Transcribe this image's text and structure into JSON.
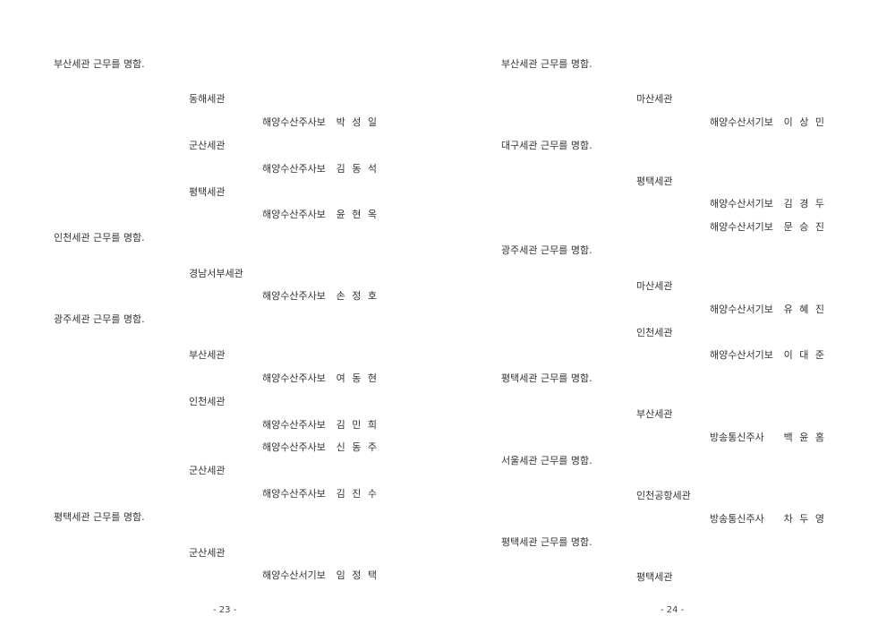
{
  "pages": [
    {
      "page_number": "- 23 -",
      "lines": [
        {
          "type": "heading",
          "text": "부산세관 근무를 명함."
        },
        {
          "type": "office",
          "text": "동해세관"
        },
        {
          "type": "person",
          "title": "해양수산주사보",
          "name": "박 성 일"
        },
        {
          "type": "office",
          "text": "군산세관"
        },
        {
          "type": "person",
          "title": "해양수산주사보",
          "name": "김 동 석"
        },
        {
          "type": "office",
          "text": "평택세관"
        },
        {
          "type": "person",
          "title": "해양수산주사보",
          "name": "윤 현 옥"
        },
        {
          "type": "heading",
          "text": "인천세관 근무를 명함."
        },
        {
          "type": "office",
          "text": "경남서부세관"
        },
        {
          "type": "person",
          "title": "해양수산주사보",
          "name": "손 정 호"
        },
        {
          "type": "heading",
          "text": "광주세관 근무를 명함."
        },
        {
          "type": "office",
          "text": "부산세관"
        },
        {
          "type": "person",
          "title": "해양수산주사보",
          "name": "여 동 현"
        },
        {
          "type": "office",
          "text": "인천세관"
        },
        {
          "type": "person",
          "title": "해양수산주사보",
          "name": "김 민 희"
        },
        {
          "type": "person",
          "title": "해양수산주사보",
          "name": "신 동 주"
        },
        {
          "type": "office",
          "text": "군산세관"
        },
        {
          "type": "person",
          "title": "해양수산주사보",
          "name": "김 진 수"
        },
        {
          "type": "heading",
          "text": "평택세관 근무를 명함."
        },
        {
          "type": "office",
          "text": "군산세관"
        },
        {
          "type": "person",
          "title": "해양수산서기보",
          "name": "임 정 택"
        }
      ]
    },
    {
      "page_number": "- 24 -",
      "lines": [
        {
          "type": "heading",
          "text": "부산세관 근무를 명함."
        },
        {
          "type": "office",
          "text": "마산세관"
        },
        {
          "type": "person",
          "title": "해양수산서기보",
          "name": "이 상 민"
        },
        {
          "type": "heading",
          "text": "대구세관 근무를 명함."
        },
        {
          "type": "office",
          "text": "평택세관"
        },
        {
          "type": "person",
          "title": "해양수산서기보",
          "name": "김 경 두"
        },
        {
          "type": "person",
          "title": "해양수산서기보",
          "name": "문 승 진"
        },
        {
          "type": "heading",
          "text": "광주세관 근무를 명함."
        },
        {
          "type": "office",
          "text": "마산세관"
        },
        {
          "type": "person",
          "title": "해양수산서기보",
          "name": "유 혜 진"
        },
        {
          "type": "office",
          "text": "인천세관"
        },
        {
          "type": "person",
          "title": "해양수산서기보",
          "name": "이 대 준"
        },
        {
          "type": "heading",
          "text": "평택세관 근무를 명함."
        },
        {
          "type": "office",
          "text": "부산세관"
        },
        {
          "type": "person",
          "title": "방송통신주사",
          "name": "백 윤 홈"
        },
        {
          "type": "heading",
          "text": "서울세관 근무를 명함."
        },
        {
          "type": "office",
          "text": "인천공항세관"
        },
        {
          "type": "person",
          "title": "방송통신주사",
          "name": "차 두 영"
        },
        {
          "type": "heading",
          "text": "평택세관 근무를 명함."
        },
        {
          "type": "office",
          "text": "평택세관"
        }
      ]
    }
  ]
}
